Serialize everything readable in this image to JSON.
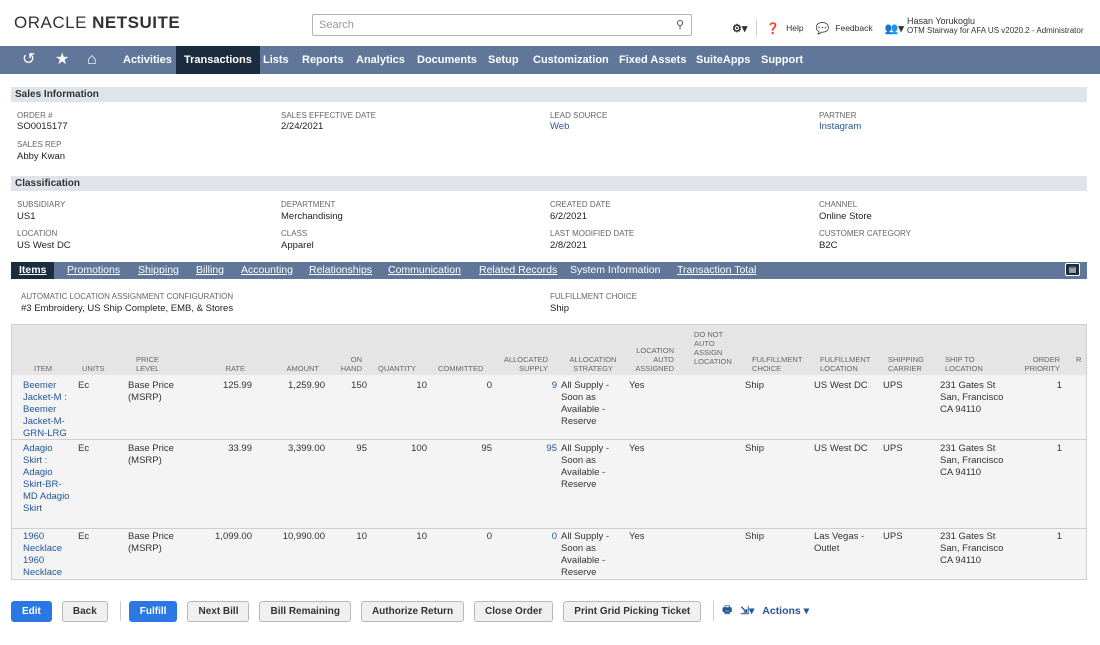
{
  "header": {
    "logo_oracle": "ORACLE",
    "logo_netsuite": "NETSUITE",
    "search_placeholder": "Search",
    "help": "Help",
    "feedback": "Feedback",
    "user_name": "Hasan Yorukoglu",
    "user_role": "OTM Stairway for AFA US v2020.2 - Administrator"
  },
  "nav": {
    "items": [
      "Activities",
      "Transactions",
      "Lists",
      "Reports",
      "Analytics",
      "Documents",
      "Setup",
      "Customization",
      "Fixed Assets",
      "SuiteApps",
      "Support"
    ],
    "active": "Transactions"
  },
  "sales_info": {
    "title": "Sales Information",
    "order_label": "ORDER #",
    "order_value": "SO0015177",
    "sales_rep_label": "SALES REP",
    "sales_rep_value": "Abby Kwan",
    "effective_label": "SALES EFFECTIVE DATE",
    "effective_value": "2/24/2021",
    "lead_label": "LEAD SOURCE",
    "lead_value": "Web",
    "partner_label": "PARTNER",
    "partner_value": "Instagram"
  },
  "classification": {
    "title": "Classification",
    "subsidiary_label": "SUBSIDIARY",
    "subsidiary_value": "US1",
    "location_label": "LOCATION",
    "location_value": "US West DC",
    "department_label": "DEPARTMENT",
    "department_value": "Merchandising",
    "class_label": "CLASS",
    "class_value": "Apparel",
    "created_label": "CREATED DATE",
    "created_value": "6/2/2021",
    "modified_label": "LAST MODIFIED DATE",
    "modified_value": "2/8/2021",
    "channel_label": "CHANNEL",
    "channel_value": "Online Store",
    "category_label": "CUSTOMER CATEGORY",
    "category_value": "B2C"
  },
  "subtabs": [
    "Items",
    "Promotions",
    "Shipping",
    "Billing",
    "Accounting",
    "Relationships",
    "Communication",
    "Related Records",
    "System Information",
    "Transaction Total"
  ],
  "items_info": {
    "auto_loc_label": "AUTOMATIC LOCATION ASSIGNMENT CONFIGURATION",
    "auto_loc_value": "#3 Embroidery, US Ship Complete, EMB, & Stores",
    "fulfill_label": "FULFILLMENT CHOICE",
    "fulfill_value": "Ship"
  },
  "columns": {
    "item": "ITEM",
    "units": "UNITS",
    "price_level": "PRICE LEVEL",
    "rate": "RATE",
    "amount": "AMOUNT",
    "on_hand": "ON HAND",
    "quantity": "QUANTITY",
    "committed": "COMMITTED",
    "allocated_supply": "ALLOCATED SUPPLY",
    "allocation_strategy": "ALLOCATION STRATEGY",
    "location_auto_assigned": "LOCATION AUTO ASSIGNED",
    "do_not_auto_assign": "DO NOT AUTO ASSIGN LOCATION",
    "fulfillment_choice": "FULFILLMENT CHOICE",
    "fulfillment_location": "FULFILLMENT LOCATION",
    "shipping_carrier": "SHIPPING CARRIER",
    "ship_to_location": "SHIP TO LOCATION",
    "order_priority": "ORDER PRIORITY",
    "more": "R"
  },
  "rows": [
    {
      "item": "Beemer Jacket-M : Beemer Jacket-M-GRN-LRG",
      "units": "Ec",
      "price_level": "Base Price (MSRP)",
      "rate": "125.99",
      "amount": "1,259.90",
      "on_hand": "150",
      "quantity": "10",
      "committed": "0",
      "allocated": "9",
      "strategy": "All Supply - Soon as Available - Reserve",
      "auto_assigned": "Yes",
      "fulfill_choice": "Ship",
      "fulfill_location": "US West DC",
      "carrier": "UPS",
      "ship_to": "231 Gates St San, Francisco CA 94110",
      "priority": "1"
    },
    {
      "item": "Adagio Skirt : Adagio Skirt-BR-MD Adagio Skirt",
      "units": "Ec",
      "price_level": "Base Price (MSRP)",
      "rate": "33.99",
      "amount": "3,399.00",
      "on_hand": "95",
      "quantity": "100",
      "committed": "95",
      "allocated": "95",
      "strategy": "All Supply - Soon as Available - Reserve",
      "auto_assigned": "Yes",
      "fulfill_choice": "Ship",
      "fulfill_location": "US West DC",
      "carrier": "UPS",
      "ship_to": "231 Gates St San, Francisco CA 94110",
      "priority": "1"
    },
    {
      "item": "1960 Necklace 1960 Necklace",
      "units": "Ec",
      "price_level": "Base Price (MSRP)",
      "rate": "1,099.00",
      "amount": "10,990.00",
      "on_hand": "10",
      "quantity": "10",
      "committed": "0",
      "allocated": "0",
      "strategy": "All Supply - Soon as Available - Reserve",
      "auto_assigned": "Yes",
      "fulfill_choice": "Ship",
      "fulfill_location": "Las Vegas - Outlet",
      "carrier": "UPS",
      "ship_to": "231 Gates St San, Francisco CA 94110",
      "priority": "1"
    }
  ],
  "buttons": {
    "edit": "Edit",
    "back": "Back",
    "fulfill": "Fulfill",
    "next_bill": "Next Bill",
    "bill_remaining": "Bill Remaining",
    "authorize_return": "Authorize Return",
    "close_order": "Close Order",
    "print_grid": "Print Grid Picking Ticket",
    "actions": "Actions"
  },
  "colors": {
    "nav_bg": "#607799",
    "nav_active": "#1c2c3f",
    "section_bg": "#dfe4eb",
    "link": "#255599",
    "primary_btn": "#2b78e4"
  }
}
